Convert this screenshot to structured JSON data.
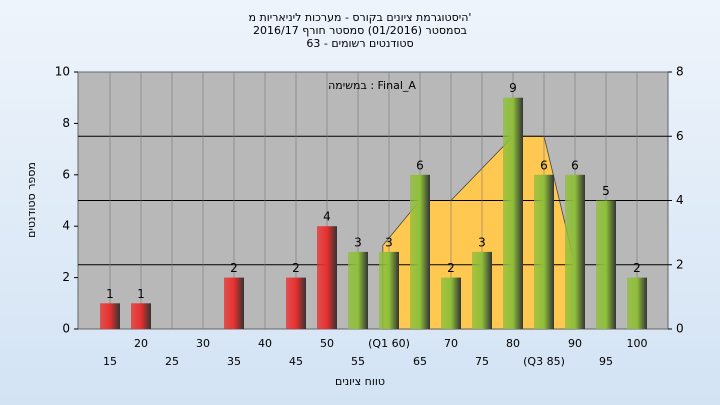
{
  "chart_data": {
    "type": "bar",
    "title": "היסטוגרמת ציונים בקורס - מערכות ליניאריות מ'",
    "subtitle": "בסמסטר (01/2016) סמסטר חורף 2016/17",
    "subtitle2": "סטודנטים רשומים - 63",
    "annotation": "במשימה : Final_A",
    "x_label": "טווח ציונים",
    "y_label": "מספר סטודנטים",
    "categories": [
      "15",
      "20",
      "25",
      "30",
      "35",
      "40",
      "45",
      "50",
      "55",
      "(Q1 60)",
      "65",
      "70",
      "75",
      "80",
      "(Q3 85)",
      "90",
      "95",
      "100"
    ],
    "values": [
      1,
      1,
      0,
      0,
      2,
      0,
      2,
      4,
      3,
      3,
      6,
      2,
      3,
      9,
      6,
      6,
      5,
      2
    ],
    "colors": [
      "#e8302f",
      "#e8302f",
      "#e8302f",
      "#e8302f",
      "#e8302f",
      "#e8302f",
      "#e8302f",
      "#e8302f",
      "#8fbf3a",
      "#8fbf3a",
      "#8fbf3a",
      "#8fbf3a",
      "#8fbf3a",
      "#8fbf3a",
      "#8fbf3a",
      "#8fbf3a",
      "#8fbf3a",
      "#8fbf3a"
    ],
    "ylim": [
      0,
      10
    ],
    "yticks": [
      0,
      2,
      4,
      6,
      8,
      10
    ],
    "y2lim": [
      0,
      8
    ],
    "y2ticks": [
      0,
      2,
      4,
      6,
      8
    ],
    "area": {
      "color": "#ffc850",
      "axis": "y2",
      "x": [
        59,
        65,
        70,
        80,
        85,
        90
      ],
      "values": [
        2.6,
        4,
        4,
        6,
        6,
        2
      ]
    },
    "grid": true
  }
}
